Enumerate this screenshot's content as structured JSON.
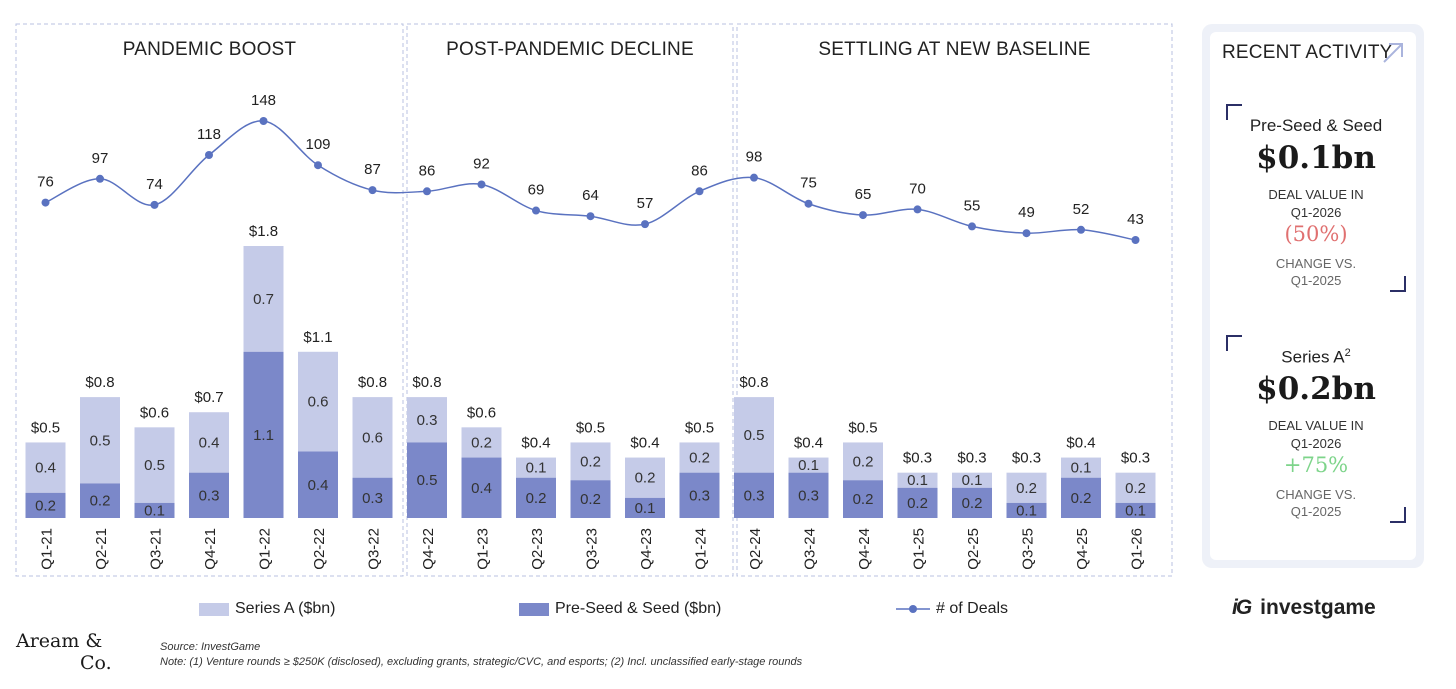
{
  "chart_data": {
    "type": "bar",
    "stacked": true,
    "categories": [
      "Q1-21",
      "Q2-21",
      "Q3-21",
      "Q4-21",
      "Q1-22",
      "Q2-22",
      "Q3-22",
      "Q4-22",
      "Q1-23",
      "Q2-23",
      "Q3-23",
      "Q4-23",
      "Q1-24",
      "Q2-24",
      "Q3-24",
      "Q4-24",
      "Q1-25",
      "Q2-25",
      "Q3-25",
      "Q4-25",
      "Q1-26"
    ],
    "series": [
      {
        "name": "Pre-Seed & Seed ($bn)",
        "color": "#7b88c9",
        "values": [
          0.2,
          0.2,
          0.1,
          0.3,
          1.1,
          0.4,
          0.3,
          0.5,
          0.4,
          0.2,
          0.2,
          0.1,
          0.3,
          0.3,
          0.3,
          0.2,
          0.2,
          0.2,
          0.1,
          0.2,
          0.1
        ]
      },
      {
        "name": "Series A ($bn)",
        "color": "#c5cbe8",
        "values": [
          0.4,
          0.5,
          0.5,
          0.4,
          0.7,
          0.6,
          0.6,
          0.3,
          0.2,
          0.1,
          0.2,
          0.2,
          0.2,
          0.5,
          0.1,
          0.2,
          0.1,
          0.1,
          0.2,
          0.1,
          0.2
        ]
      }
    ],
    "totals": [
      "$0.5",
      "$0.8",
      "$0.6",
      "$0.7",
      "$1.8",
      "$1.1",
      "$0.8",
      "$0.8",
      "$0.6",
      "$0.4",
      "$0.5",
      "$0.4",
      "$0.5",
      "$0.8",
      "$0.4",
      "$0.5",
      "$0.3",
      "$0.3",
      "$0.3",
      "$0.4",
      "$0.3"
    ],
    "total_values": [
      0.5,
      0.8,
      0.6,
      0.7,
      1.8,
      1.1,
      0.8,
      0.8,
      0.6,
      0.4,
      0.5,
      0.4,
      0.5,
      0.8,
      0.4,
      0.5,
      0.3,
      0.3,
      0.3,
      0.4,
      0.3
    ],
    "line": {
      "name": "# of Deals",
      "color": "#5a72c0",
      "values": [
        76,
        97,
        74,
        118,
        148,
        109,
        87,
        86,
        92,
        69,
        64,
        57,
        86,
        98,
        75,
        65,
        70,
        55,
        49,
        52,
        43
      ]
    },
    "periods": [
      {
        "title": "PANDEMIC BOOST",
        "start": 0,
        "end": 6
      },
      {
        "title": "POST-PANDEMIC DECLINE",
        "start": 7,
        "end": 12
      },
      {
        "title": "SETTLING AT NEW BASELINE",
        "start": 13,
        "end": 20
      }
    ],
    "ylim_bars": [
      0,
      1.8
    ],
    "ylim_deals": [
      0,
      160
    ]
  },
  "legend": {
    "series_a": "Series A ($bn)",
    "seed": "Pre-Seed & Seed ($bn)",
    "deals": "# of Deals"
  },
  "sidebar": {
    "title": "RECENT ACTIVITY",
    "cards": [
      {
        "title": "Pre-Seed & Seed",
        "value": "$0.1bn",
        "sub1": "DEAL VALUE IN",
        "sub2": "Q1-2026",
        "change": "(50%)",
        "change_color": "#e07070",
        "sub3": "CHANGE VS.",
        "sub4": "Q1-2025"
      },
      {
        "title": "Series A",
        "title_sup": "2",
        "value": "$0.2bn",
        "sub1": "DEAL VALUE IN",
        "sub2": "Q1-2026",
        "change": "+75%",
        "change_color": "#7dd48a",
        "sub3": "CHANGE VS.",
        "sub4": "Q1-2025"
      }
    ]
  },
  "footer": {
    "logo_line1": "Aream &",
    "logo_line2": "Co.",
    "source": "Source: InvestGame",
    "note": "Note: (1) Venture rounds ≥ $250K (disclosed), excluding grants, strategic/CVC, and esports; (2) Incl. unclassified early-stage rounds",
    "brand_mark": "iG",
    "brand": "investgame"
  }
}
